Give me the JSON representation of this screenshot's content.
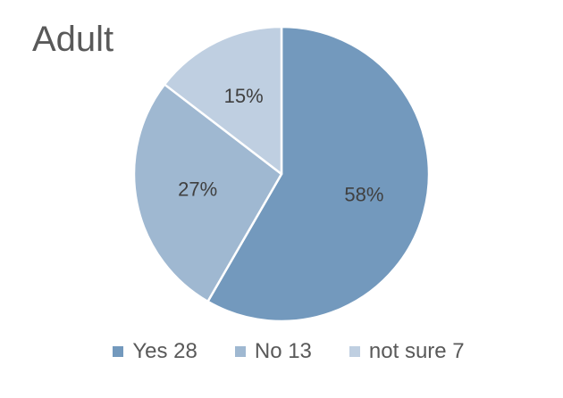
{
  "chart_data": {
    "type": "pie",
    "title": "Adult",
    "categories": [
      "Yes",
      "No",
      "not sure"
    ],
    "values": [
      28,
      13,
      7
    ],
    "percent_labels": [
      "58%",
      "27%",
      "15%"
    ],
    "legend_labels": [
      "Yes 28",
      "No 13",
      "not sure 7"
    ],
    "colors": [
      "#7399bd",
      "#9fb8d1",
      "#bfcfe1"
    ],
    "legend_position": "bottom",
    "start_angle_deg": 0,
    "direction": "clockwise"
  }
}
